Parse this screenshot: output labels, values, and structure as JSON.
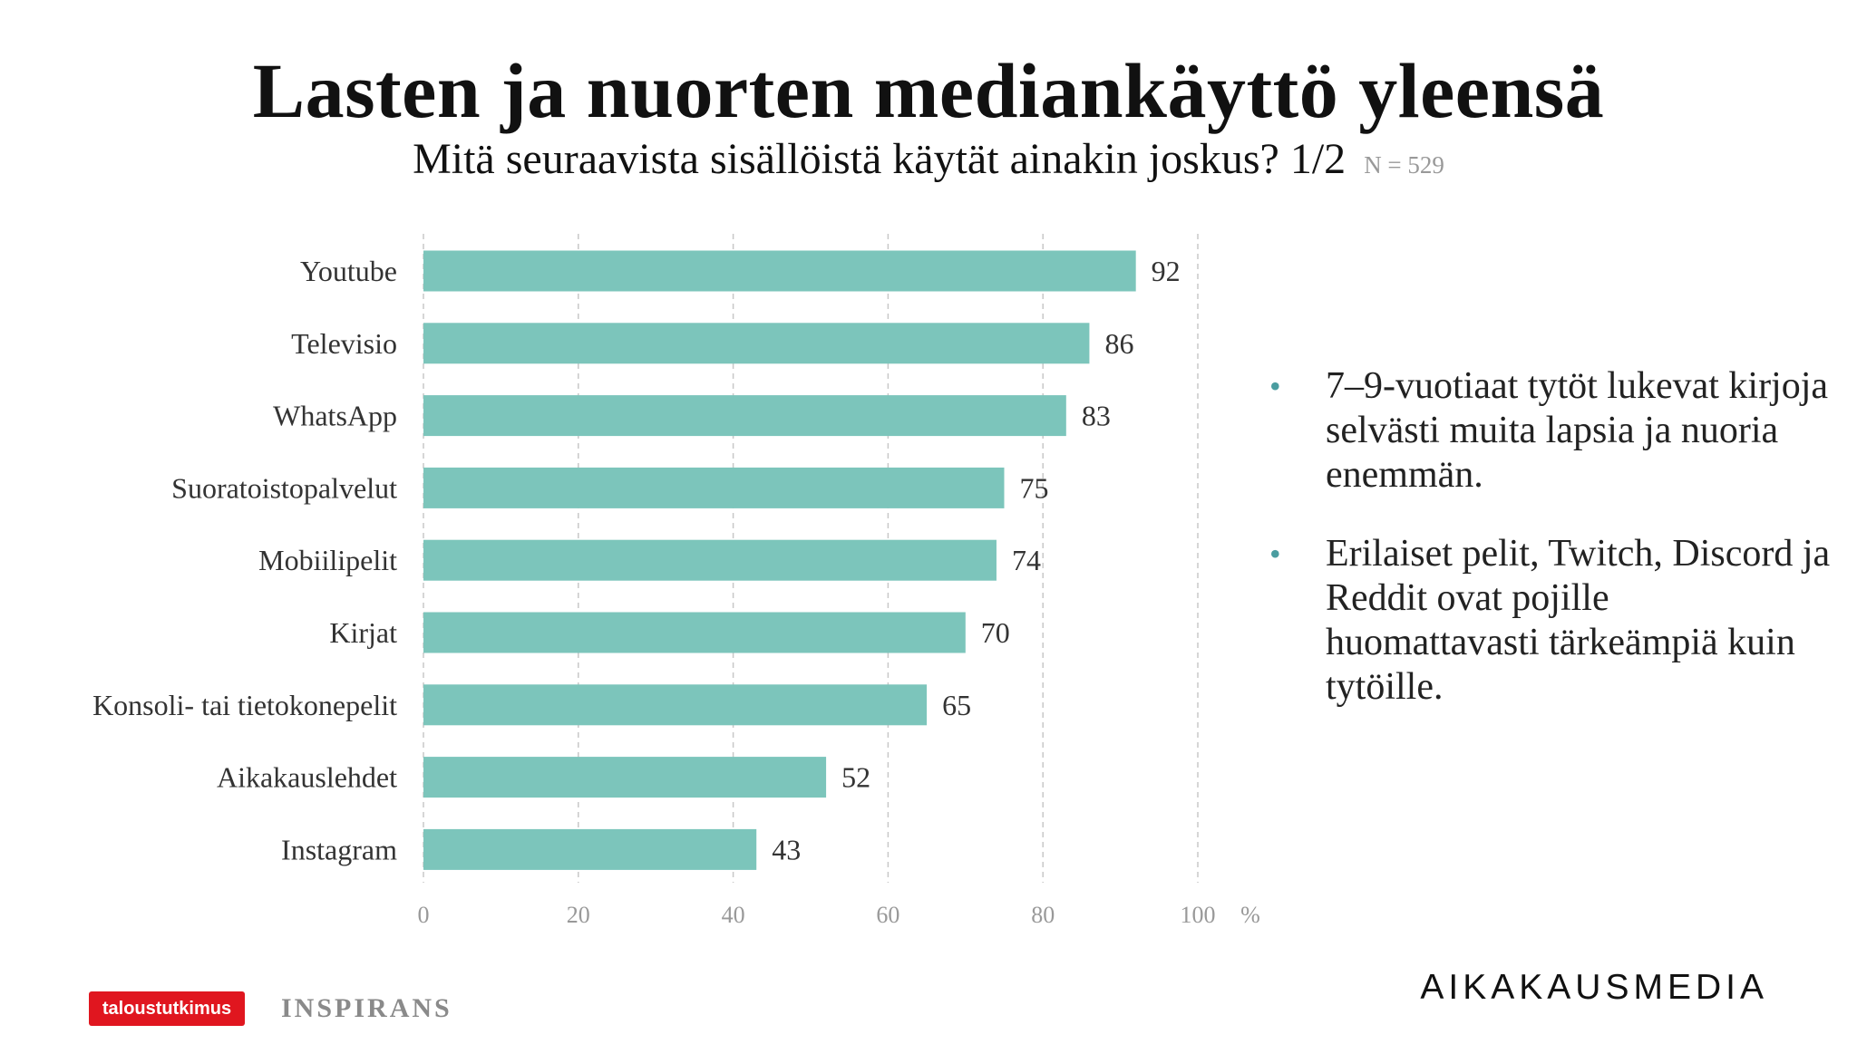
{
  "header": {
    "title": "Lasten ja nuorten mediankäyttö yleensä",
    "subtitle": "Mitä seuraavista sisällöistä käytät ainakin joskus? 1/2",
    "sample_size": "N = 529"
  },
  "chart_data": {
    "type": "bar",
    "orientation": "horizontal",
    "categories": [
      "Youtube",
      "Televisio",
      "WhatsApp",
      "Suoratoistopalvelut",
      "Mobiilipelit",
      "Kirjat",
      "Konsoli- tai tietokonepelit",
      "Aikakauslehdet",
      "Instagram"
    ],
    "values": [
      92,
      86,
      83,
      75,
      74,
      70,
      65,
      52,
      43
    ],
    "xlim": [
      0,
      100
    ],
    "xticks": [
      0,
      20,
      40,
      60,
      80,
      100
    ],
    "x_unit": "%",
    "grid": "vertical-dashed",
    "bar_color": "#7cc5bb"
  },
  "notes": {
    "bullets": [
      "7–9-vuotiaat tytöt lukevat kirjoja selvästi muita lapsia ja nuoria enemmän.",
      "Erilaiset pelit, Twitch, Discord ja Reddit ovat pojille huomattavasti tärkeämpiä kuin tytöille."
    ],
    "bullet_symbol": "•"
  },
  "footer": {
    "logo_left": "taloustutkimus",
    "logo_middle": "INSPIRANS",
    "logo_right": "AIKAKAUSMEDIA"
  },
  "colors": {
    "bar": "#7cc5bb",
    "bullet": "#4a9da0",
    "brand_red": "#e0161f"
  }
}
